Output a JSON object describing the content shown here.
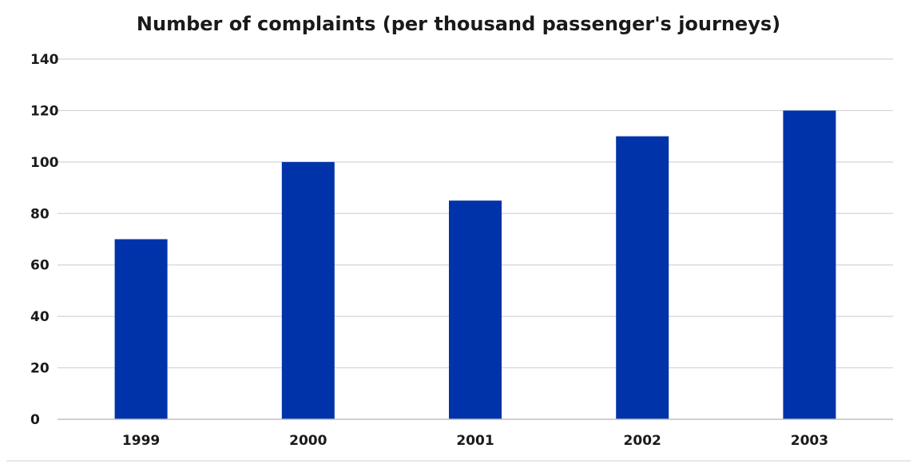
{
  "chart_data": {
    "type": "bar",
    "title": "Number of complaints (per thousand passenger's journeys)",
    "xlabel": "",
    "ylabel": "",
    "categories": [
      "1999",
      "2000",
      "2001",
      "2002",
      "2003"
    ],
    "values": [
      70,
      100,
      85,
      110,
      120
    ],
    "ylim": [
      0,
      140
    ],
    "yticks": [
      "0",
      "20",
      "40",
      "60",
      "80",
      "100",
      "120",
      "140"
    ],
    "grid": true,
    "legend": "none",
    "bar_color": "#0033aa"
  }
}
